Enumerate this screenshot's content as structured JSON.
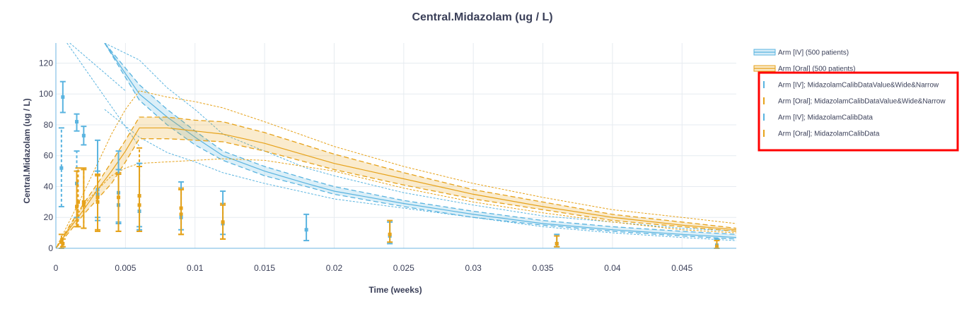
{
  "chart_data": {
    "type": "line",
    "title": "Central.Midazolam (ug / L)",
    "xlabel": "Time (weeks)",
    "ylabel": "Central.Midazolam (ug / L)",
    "xlim": [
      0,
      0.0489
    ],
    "ylim": [
      0,
      133
    ],
    "x_ticks": [
      0,
      0.005,
      0.01,
      0.015,
      0.02,
      0.025,
      0.03,
      0.035,
      0.04,
      0.045
    ],
    "x_tick_labels": [
      "0",
      "0.005",
      "0.01",
      "0.015",
      "0.02",
      "0.025",
      "0.03",
      "0.035",
      "0.04",
      "0.045"
    ],
    "y_ticks": [
      0,
      20,
      40,
      60,
      80,
      100,
      120
    ],
    "y_tick_labels": [
      "0",
      "20",
      "40",
      "60",
      "80",
      "100",
      "120"
    ],
    "grid": true,
    "colors": {
      "iv": "#5ab4e0",
      "oral": "#e6a21a",
      "highlight": "#ff0000",
      "text": "#3a3f58",
      "grid": "#e6ebf0",
      "axis": "#6cb6e0"
    },
    "series": [
      {
        "name": "Arm [IV] (500 patients)",
        "kind": "band",
        "color": "#5ab4e0",
        "x": [
          0.0035,
          0.006,
          0.008,
          0.01,
          0.012,
          0.015,
          0.018,
          0.02,
          0.025,
          0.03,
          0.035,
          0.04,
          0.045,
          0.0489
        ],
        "median": [
          133,
          100,
          85,
          72,
          60,
          50,
          42,
          37,
          29,
          22,
          16,
          12,
          9,
          7
        ],
        "lower": [
          133,
          96,
          80,
          67,
          57,
          47,
          40,
          35,
          27,
          20,
          15,
          11,
          8,
          6
        ],
        "upper": [
          133,
          106,
          90,
          76,
          63,
          53,
          45,
          40,
          31,
          24,
          18,
          14,
          11,
          9
        ],
        "lower_outer": [
          90,
          72,
          62,
          56,
          49,
          42,
          36,
          32,
          26,
          20,
          14,
          10,
          7,
          5
        ],
        "upper_outer": [
          133,
          122,
          104,
          90,
          74,
          63,
          52,
          47,
          36,
          28,
          21,
          17,
          13,
          11
        ],
        "outer_upper_start": {
          "x": [
            0.001,
            0.005
          ],
          "y": [
            133,
            102
          ]
        },
        "outer_lower_start": {
          "x": [
            0.0008,
            0.006
          ],
          "y": [
            133,
            66
          ]
        }
      },
      {
        "name": "Arm [Oral] (500 patients)",
        "kind": "band",
        "color": "#e6a21a",
        "x": [
          0,
          0.001,
          0.002,
          0.003,
          0.004,
          0.005,
          0.006,
          0.008,
          0.01,
          0.012,
          0.015,
          0.02,
          0.025,
          0.03,
          0.035,
          0.04,
          0.045,
          0.0489
        ],
        "median": [
          0,
          13,
          25,
          38,
          50,
          63,
          78,
          78,
          76,
          74,
          68,
          55,
          45,
          35,
          27,
          20,
          15,
          12
        ],
        "lower": [
          0,
          11,
          22,
          32,
          42,
          56,
          71,
          71,
          70,
          69,
          63,
          51,
          41,
          32,
          25,
          18,
          14,
          11
        ],
        "upper": [
          0,
          15,
          29,
          42,
          56,
          70,
          85,
          85,
          83,
          82,
          75,
          61,
          49,
          38,
          30,
          22,
          17,
          13
        ],
        "lower_outer": [
          0,
          14,
          28,
          38,
          47,
          52,
          55,
          56,
          57,
          58,
          57,
          50,
          39,
          30,
          23,
          17,
          12,
          10
        ],
        "upper_outer": [
          0,
          18,
          36,
          55,
          74,
          90,
          102,
          98,
          95,
          91,
          82,
          66,
          53,
          42,
          33,
          25,
          20,
          16
        ]
      },
      {
        "name": "Arm [IV]; MidazolamCalibDataValue&Wide&Narrow",
        "kind": "errorbars",
        "style": "dashed",
        "color": "#5ab4e0",
        "x": [
          0.0004,
          0.0015,
          0.003,
          0.0045,
          0.006
        ],
        "y": [
          52,
          42,
          38,
          36,
          34
        ],
        "low": [
          27,
          20,
          18,
          16,
          14
        ],
        "high": [
          78,
          63,
          50,
          51,
          55
        ]
      },
      {
        "name": "Arm [Oral]; MidazolamCalibDataValue&Wide&Narrow",
        "kind": "errorbars",
        "style": "dashed",
        "color": "#e6a21a",
        "x": [
          0.0004,
          0.0016,
          0.002,
          0.003,
          0.0045,
          0.006,
          0.009,
          0.012
        ],
        "y": [
          4,
          30,
          30,
          30,
          28,
          28,
          22,
          16
        ],
        "low": [
          0,
          14,
          13,
          12,
          11,
          11,
          9,
          6
        ],
        "high": [
          9,
          52,
          52,
          47,
          49,
          65,
          39,
          29
        ]
      },
      {
        "name": "Arm [IV]; MidazolamCalibData",
        "kind": "errorbars",
        "style": "solid",
        "color": "#5ab4e0",
        "x": [
          0.0005,
          0.0015,
          0.002,
          0.003,
          0.0045,
          0.006,
          0.009,
          0.012,
          0.018,
          0.024,
          0.036,
          0.0475
        ],
        "y": [
          98,
          82,
          73,
          35,
          28,
          24,
          20,
          16,
          12,
          8,
          3,
          2
        ],
        "low": [
          88,
          76,
          67,
          20,
          17,
          12,
          12,
          9,
          5,
          3,
          1,
          0
        ],
        "high": [
          108,
          87,
          79,
          70,
          63,
          55,
          43,
          37,
          22,
          17,
          9,
          6
        ]
      },
      {
        "name": "Arm [Oral]; MidazolamCalibData",
        "kind": "errorbars",
        "style": "solid",
        "color": "#e6a21a",
        "x": [
          0.0005,
          0.0015,
          0.002,
          0.003,
          0.0045,
          0.006,
          0.009,
          0.012,
          0.024,
          0.036,
          0.0475
        ],
        "y": [
          3,
          27,
          28,
          33,
          33,
          34,
          26,
          17,
          9,
          3,
          1
        ],
        "low": [
          1,
          14,
          13,
          11,
          11,
          11,
          9,
          6,
          4,
          1,
          0
        ],
        "high": [
          6,
          50,
          51,
          48,
          48,
          53,
          38,
          28,
          18,
          8,
          5
        ]
      }
    ],
    "legend_position": "right"
  }
}
